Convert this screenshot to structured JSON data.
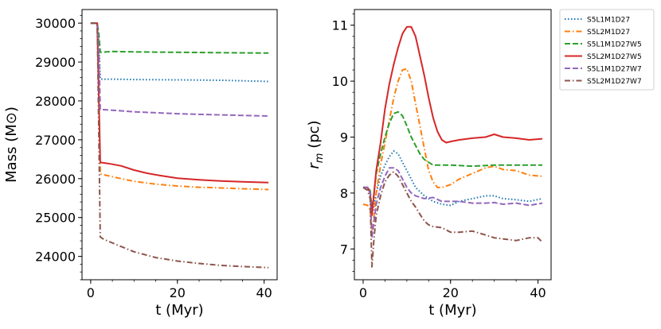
{
  "chart_data": [
    {
      "type": "line",
      "xlabel": "t (Myr)",
      "ylabel": "Mass (M⊙)",
      "xlim": [
        -2,
        43
      ],
      "ylim": [
        23400,
        30350
      ],
      "xticks": [
        "0",
        "20",
        "40"
      ],
      "yticks": [
        "24000",
        "25000",
        "26000",
        "27000",
        "28000",
        "29000",
        "30000"
      ],
      "series": [
        {
          "key": "S5L1M1D27",
          "color": "#1f77b4",
          "dash": "dotted",
          "x": [
            0,
            1.5,
            1.9,
            2.2,
            5,
            10,
            20,
            30,
            41
          ],
          "y": [
            30000,
            30000,
            29500,
            28560,
            28560,
            28550,
            28540,
            28530,
            28500
          ]
        },
        {
          "key": "S5L2M1D27",
          "color": "#ff7f0e",
          "dash": "dashdot",
          "x": [
            0,
            1.5,
            1.9,
            2.2,
            5,
            10,
            15,
            20,
            25,
            30,
            35,
            41
          ],
          "y": [
            30000,
            30000,
            28000,
            26120,
            26050,
            25930,
            25860,
            25810,
            25780,
            25760,
            25740,
            25720
          ]
        },
        {
          "key": "S5L1M1D27W5",
          "color": "#2ca02c",
          "dash": "dashed",
          "x": [
            0,
            1.5,
            1.9,
            2.2,
            5,
            10,
            20,
            30,
            41
          ],
          "y": [
            30000,
            30000,
            29700,
            29250,
            29270,
            29260,
            29250,
            29240,
            29230
          ]
        },
        {
          "key": "S5L2M1D27W5",
          "color": "#d62728",
          "dash": "solid",
          "x": [
            0,
            1.5,
            1.9,
            2.2,
            4,
            7,
            10,
            13,
            16,
            20,
            25,
            30,
            35,
            41
          ],
          "y": [
            30000,
            30000,
            28000,
            26420,
            26390,
            26330,
            26220,
            26140,
            26080,
            26010,
            25970,
            25940,
            25920,
            25900
          ]
        },
        {
          "key": "S5L1M1D27W7",
          "color": "#9467bd",
          "dash": "dashed",
          "x": [
            0,
            1.5,
            1.9,
            2.2,
            5,
            10,
            20,
            30,
            41
          ],
          "y": [
            30000,
            30000,
            29300,
            27780,
            27760,
            27720,
            27670,
            27640,
            27610
          ]
        },
        {
          "key": "S5L2M1D27W7",
          "color": "#8c564b",
          "dash": "dashdot",
          "x": [
            0,
            1.5,
            1.9,
            2.2,
            3,
            6,
            10,
            15,
            20,
            25,
            30,
            35,
            41
          ],
          "y": [
            30000,
            30000,
            27000,
            24500,
            24440,
            24300,
            24120,
            23970,
            23880,
            23820,
            23770,
            23740,
            23710
          ]
        }
      ]
    },
    {
      "type": "line",
      "xlabel": "t (Myr)",
      "ylabel": "r_m (pc)",
      "xlim": [
        -2,
        43
      ],
      "ylim": [
        6.45,
        11.28
      ],
      "xticks": [
        "0",
        "20",
        "40"
      ],
      "yticks": [
        "7",
        "8",
        "9",
        "10",
        "11"
      ],
      "legend": {
        "position": "outside-right"
      },
      "series": [
        {
          "key": "S5L1M1D27",
          "label": "S5L1M1D27",
          "color": "#1f77b4",
          "dash": "dotted",
          "x": [
            0,
            1,
            1.6,
            2,
            2.5,
            3,
            4,
            5,
            6,
            7,
            8,
            9,
            10,
            11,
            12,
            14,
            16,
            18,
            20,
            22,
            25,
            28,
            30,
            32,
            35,
            38,
            41
          ],
          "y": [
            8.1,
            8.1,
            8.05,
            7.6,
            7.8,
            8.0,
            8.3,
            8.5,
            8.65,
            8.75,
            8.7,
            8.55,
            8.4,
            8.25,
            8.1,
            7.95,
            7.85,
            7.8,
            7.78,
            7.85,
            7.9,
            7.95,
            7.95,
            7.9,
            7.88,
            7.85,
            7.9
          ]
        },
        {
          "key": "S5L2M1D27",
          "label": "S5L2M1D27",
          "color": "#ff7f0e",
          "dash": "dashdot",
          "x": [
            0,
            1,
            1.6,
            2,
            2.5,
            3,
            4,
            5,
            6,
            7,
            8,
            9,
            10,
            11,
            12,
            13,
            14,
            15,
            16,
            17,
            18,
            20,
            22,
            25,
            28,
            30,
            32,
            35,
            38,
            41
          ],
          "y": [
            7.8,
            7.78,
            7.7,
            7.3,
            7.6,
            8.0,
            8.5,
            8.9,
            9.3,
            9.7,
            10.0,
            10.2,
            10.22,
            10.0,
            9.6,
            9.2,
            8.8,
            8.4,
            8.2,
            8.1,
            8.1,
            8.15,
            8.25,
            8.35,
            8.45,
            8.48,
            8.42,
            8.4,
            8.32,
            8.3
          ]
        },
        {
          "key": "S5L1M1D27W5",
          "label": "S5L1M1D27W5",
          "color": "#2ca02c",
          "dash": "dashed",
          "x": [
            0,
            1,
            1.6,
            2,
            2.5,
            3,
            4,
            5,
            6,
            7,
            8,
            9,
            10,
            11,
            12,
            13,
            14,
            15,
            16,
            18,
            20,
            25,
            30,
            35,
            41
          ],
          "y": [
            8.1,
            8.1,
            8.05,
            7.7,
            8.0,
            8.35,
            8.7,
            9.0,
            9.25,
            9.42,
            9.45,
            9.38,
            9.2,
            9.0,
            8.85,
            8.7,
            8.6,
            8.55,
            8.5,
            8.5,
            8.5,
            8.48,
            8.5,
            8.5,
            8.5
          ]
        },
        {
          "key": "S5L2M1D27W5",
          "label": "S5L2M1D27W5",
          "color": "#d62728",
          "dash": "solid",
          "x": [
            0,
            1,
            1.6,
            2,
            2.5,
            3,
            4,
            5,
            6,
            7,
            8,
            9,
            10,
            11,
            12,
            13,
            14,
            15,
            16,
            17,
            18,
            19,
            20,
            22,
            25,
            28,
            30,
            32,
            35,
            38,
            41
          ],
          "y": [
            8.1,
            8.1,
            8.0,
            7.6,
            8.0,
            8.4,
            8.9,
            9.5,
            9.95,
            10.3,
            10.6,
            10.85,
            10.97,
            10.97,
            10.8,
            10.45,
            10.1,
            9.7,
            9.35,
            9.1,
            8.95,
            8.9,
            8.92,
            8.95,
            8.98,
            9.0,
            9.05,
            9.0,
            8.98,
            8.95,
            8.97
          ]
        },
        {
          "key": "S5L1M1D27W7",
          "label": "S5L1M1D27W7",
          "color": "#9467bd",
          "dash": "dashed",
          "x": [
            0,
            1,
            1.6,
            2,
            2.5,
            3,
            4,
            5,
            6,
            7,
            8,
            9,
            10,
            11,
            12,
            14,
            16,
            18,
            20,
            22,
            25,
            28,
            30,
            32,
            35,
            38,
            41
          ],
          "y": [
            8.1,
            8.1,
            8.0,
            7.2,
            7.5,
            7.8,
            8.1,
            8.3,
            8.45,
            8.45,
            8.4,
            8.25,
            8.1,
            8.0,
            7.95,
            7.9,
            7.92,
            7.85,
            7.85,
            7.85,
            7.82,
            7.82,
            7.83,
            7.8,
            7.82,
            7.78,
            7.82
          ]
        },
        {
          "key": "S5L2M1D27W7",
          "label": "S5L2M1D27W7",
          "color": "#8c564b",
          "dash": "dashdot",
          "x": [
            0,
            1,
            1.6,
            2,
            2.5,
            3,
            4,
            5,
            6,
            7,
            8,
            9,
            10,
            11,
            12,
            13,
            14,
            15,
            16,
            18,
            20,
            22,
            25,
            28,
            30,
            32,
            35,
            38,
            40,
            41
          ],
          "y": [
            8.1,
            8.05,
            7.9,
            6.68,
            7.2,
            7.6,
            7.95,
            8.2,
            8.32,
            8.38,
            8.3,
            8.15,
            8.0,
            7.85,
            7.75,
            7.62,
            7.5,
            7.43,
            7.4,
            7.38,
            7.3,
            7.3,
            7.32,
            7.25,
            7.2,
            7.18,
            7.15,
            7.2,
            7.2,
            7.12
          ]
        }
      ]
    }
  ]
}
